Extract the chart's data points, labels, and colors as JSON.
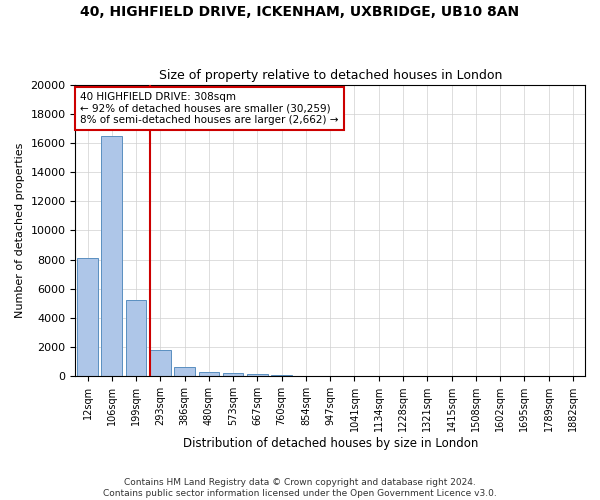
{
  "title_line1": "40, HIGHFIELD DRIVE, ICKENHAM, UXBRIDGE, UB10 8AN",
  "title_line2": "Size of property relative to detached houses in London",
  "xlabel": "Distribution of detached houses by size in London",
  "ylabel": "Number of detached properties",
  "categories": [
    "12sqm",
    "106sqm",
    "199sqm",
    "293sqm",
    "386sqm",
    "480sqm",
    "573sqm",
    "667sqm",
    "760sqm",
    "854sqm",
    "947sqm",
    "1041sqm",
    "1134sqm",
    "1228sqm",
    "1321sqm",
    "1415sqm",
    "1508sqm",
    "1602sqm",
    "1695sqm",
    "1789sqm",
    "1882sqm"
  ],
  "values": [
    8100,
    16500,
    5250,
    1820,
    650,
    290,
    190,
    160,
    110,
    0,
    0,
    0,
    0,
    0,
    0,
    0,
    0,
    0,
    0,
    0,
    0
  ],
  "bar_color": "#aec6e8",
  "bar_edge_color": "#5a8fc0",
  "marker_index": 3,
  "marker_color": "#cc0000",
  "annotation_line1": "40 HIGHFIELD DRIVE: 308sqm",
  "annotation_line2": "← 92% of detached houses are smaller (30,259)",
  "annotation_line3": "8% of semi-detached houses are larger (2,662) →",
  "ylim": [
    0,
    20000
  ],
  "yticks": [
    0,
    2000,
    4000,
    6000,
    8000,
    10000,
    12000,
    14000,
    16000,
    18000,
    20000
  ],
  "footer_line1": "Contains HM Land Registry data © Crown copyright and database right 2024.",
  "footer_line2": "Contains public sector information licensed under the Open Government Licence v3.0.",
  "bg_color": "#ffffff",
  "grid_color": "#d0d0d0"
}
